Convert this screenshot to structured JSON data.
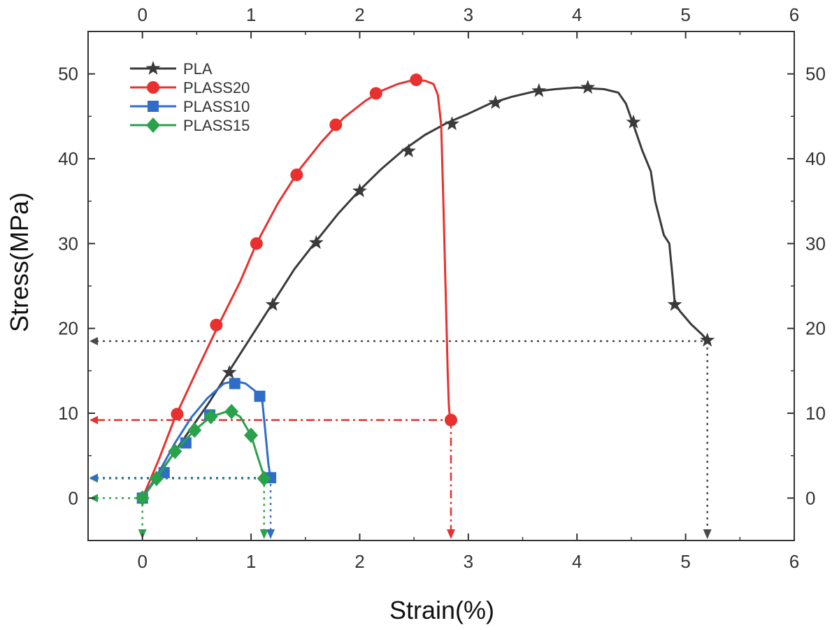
{
  "chart_data": {
    "type": "line",
    "title": "",
    "xlabel": "Strain(%)",
    "ylabel": "Stress(MPa)",
    "xlim": [
      -0.5,
      6
    ],
    "ylim": [
      -5,
      55
    ],
    "xticks": [
      0,
      1,
      2,
      3,
      4,
      5,
      6
    ],
    "yticks": [
      0,
      10,
      20,
      30,
      40,
      50
    ],
    "legend_position": "top-left",
    "series": [
      {
        "name": "PLA",
        "color": "#3a3a3a",
        "marker": "star",
        "x": [
          0,
          0.3,
          0.6,
          0.8,
          1.0,
          1.2,
          1.4,
          1.6,
          1.8,
          2.0,
          2.2,
          2.4,
          2.6,
          2.8,
          3.0,
          3.2,
          3.4,
          3.6,
          3.8,
          4.0,
          4.1,
          4.25,
          4.38,
          4.45,
          4.52,
          4.6,
          4.68,
          4.72,
          4.8,
          4.85,
          4.88,
          4.9,
          4.95,
          5.05,
          5.15,
          5.2
        ],
        "y": [
          0,
          5.5,
          11,
          15,
          19,
          23,
          27,
          30.3,
          33.5,
          36.3,
          38.8,
          41,
          42.8,
          44.2,
          45.3,
          46.5,
          47.3,
          47.9,
          48.2,
          48.4,
          48.3,
          48.2,
          47.8,
          46.5,
          44,
          41,
          38.5,
          35,
          31,
          30,
          26,
          23,
          22,
          20.5,
          19.3,
          18.6
        ],
        "marker_x": [
          0.8,
          1.2,
          1.6,
          2.0,
          2.45,
          2.85,
          3.25,
          3.65,
          4.1,
          4.52,
          4.9,
          5.2
        ],
        "marker_y": [
          14.8,
          22.8,
          30.1,
          36.2,
          40.9,
          44.1,
          46.6,
          48.0,
          48.4,
          44.3,
          22.8,
          18.6
        ]
      },
      {
        "name": "PLASS20",
        "color": "#e8312f",
        "marker": "circle",
        "x": [
          0,
          0.15,
          0.3,
          0.5,
          0.7,
          0.9,
          1.05,
          1.25,
          1.45,
          1.65,
          1.85,
          2.05,
          2.2,
          2.35,
          2.5,
          2.6,
          2.68,
          2.72,
          2.75,
          2.77,
          2.79,
          2.81,
          2.82,
          2.83,
          2.84
        ],
        "y": [
          0,
          4.5,
          9.5,
          15,
          20.4,
          25.5,
          30,
          34.8,
          38.8,
          42,
          44.8,
          46.8,
          48,
          48.8,
          49.3,
          49.2,
          48.8,
          47.5,
          44,
          35,
          25,
          15,
          11,
          9.5,
          9.2
        ],
        "marker_x": [
          0.32,
          0.68,
          1.05,
          1.42,
          1.78,
          2.15,
          2.52,
          2.84
        ],
        "marker_y": [
          9.9,
          20.4,
          30.0,
          38.1,
          44.0,
          47.7,
          49.3,
          9.2
        ]
      },
      {
        "name": "PLASS10",
        "color": "#2f6dc8",
        "marker": "square",
        "x": [
          0,
          0.15,
          0.3,
          0.45,
          0.6,
          0.75,
          0.85,
          0.95,
          1.05,
          1.1,
          1.13,
          1.16,
          1.18
        ],
        "y": [
          0,
          3,
          6.5,
          9.5,
          11.8,
          13.5,
          13.8,
          13.5,
          12.5,
          11.9,
          8,
          4,
          2.4
        ],
        "marker_x": [
          0,
          0.2,
          0.4,
          0.62,
          0.85,
          1.08,
          1.18
        ],
        "marker_y": [
          0,
          3.0,
          6.5,
          9.8,
          13.5,
          12.0,
          2.4
        ]
      },
      {
        "name": "PLASS15",
        "color": "#2aa14b",
        "marker": "diamond",
        "x": [
          0,
          0.13,
          0.3,
          0.48,
          0.63,
          0.8,
          0.9,
          1.0,
          1.07,
          1.12,
          1.15
        ],
        "y": [
          0,
          2.3,
          5.5,
          8,
          9.6,
          10.3,
          9.6,
          7.4,
          4.5,
          2.6,
          2.3
        ],
        "marker_x": [
          0,
          0.13,
          0.3,
          0.48,
          0.63,
          0.82,
          1.0,
          1.12
        ],
        "marker_y": [
          0,
          2.3,
          5.5,
          8.0,
          9.6,
          10.2,
          7.4,
          2.3
        ]
      }
    ],
    "annotations": [
      {
        "color": "#4a4a4a",
        "dash": "dotted",
        "y_level": 18.5,
        "break_x": 5.2
      },
      {
        "color": "#e8312f",
        "dash": "dashdot",
        "y_level": 9.2,
        "break_x": 2.84
      },
      {
        "color": "#2aa14b",
        "dash": "dotted",
        "y_level": 2.3,
        "break_x": 1.12
      },
      {
        "color": "#2f6dc8",
        "dash": "dotted",
        "y_level": 2.4,
        "break_x": 1.18
      },
      {
        "color": "#2aa14b",
        "dash": "dotted",
        "y_level": 0,
        "break_x": 0
      }
    ]
  }
}
